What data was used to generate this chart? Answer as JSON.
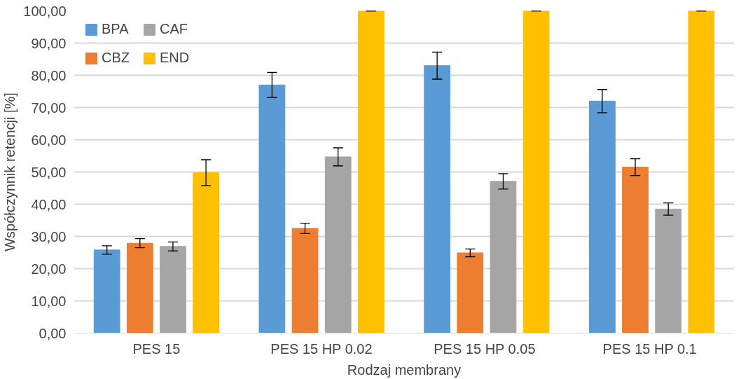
{
  "chart_data": {
    "type": "bar",
    "xlabel": "Rodzaj membrany",
    "ylabel": "Współczynnik retencji [%]",
    "categories": [
      "PES 15",
      "PES 15 HP 0.02",
      "PES 15  HP 0.05",
      "PES 15  HP 0.1"
    ],
    "series": [
      {
        "name": "BPA",
        "color": "#5b9bd5",
        "values": [
          25.8,
          77.0,
          83.0,
          72.0
        ],
        "errors": [
          1.3,
          3.9,
          4.2,
          3.6
        ]
      },
      {
        "name": "CBZ",
        "color": "#ed7d31",
        "values": [
          27.9,
          32.5,
          24.9,
          51.5
        ],
        "errors": [
          1.4,
          1.6,
          1.2,
          2.6
        ]
      },
      {
        "name": "CAF",
        "color": "#a5a5a5",
        "values": [
          26.9,
          54.7,
          47.1,
          38.5
        ],
        "errors": [
          1.4,
          2.8,
          2.4,
          1.9
        ]
      },
      {
        "name": "END",
        "color": "#ffc000",
        "values": [
          49.8,
          100.0,
          100.0,
          100.0
        ],
        "errors": [
          4.0,
          0,
          0,
          0
        ]
      }
    ],
    "ylim": [
      0,
      100
    ],
    "yticks": [
      {
        "value": 0,
        "label": "0,00"
      },
      {
        "value": 10,
        "label": "10,00"
      },
      {
        "value": 20,
        "label": "20,00"
      },
      {
        "value": 30,
        "label": "30,00"
      },
      {
        "value": 40,
        "label": "40,00"
      },
      {
        "value": 50,
        "label": "50,00"
      },
      {
        "value": 60,
        "label": "60,00"
      },
      {
        "value": 70,
        "label": "70,00"
      },
      {
        "value": 80,
        "label": "80,00"
      },
      {
        "value": 90,
        "label": "90,00"
      },
      {
        "value": 100,
        "label": "100,00"
      }
    ],
    "grid": "y",
    "legend": "top left"
  }
}
